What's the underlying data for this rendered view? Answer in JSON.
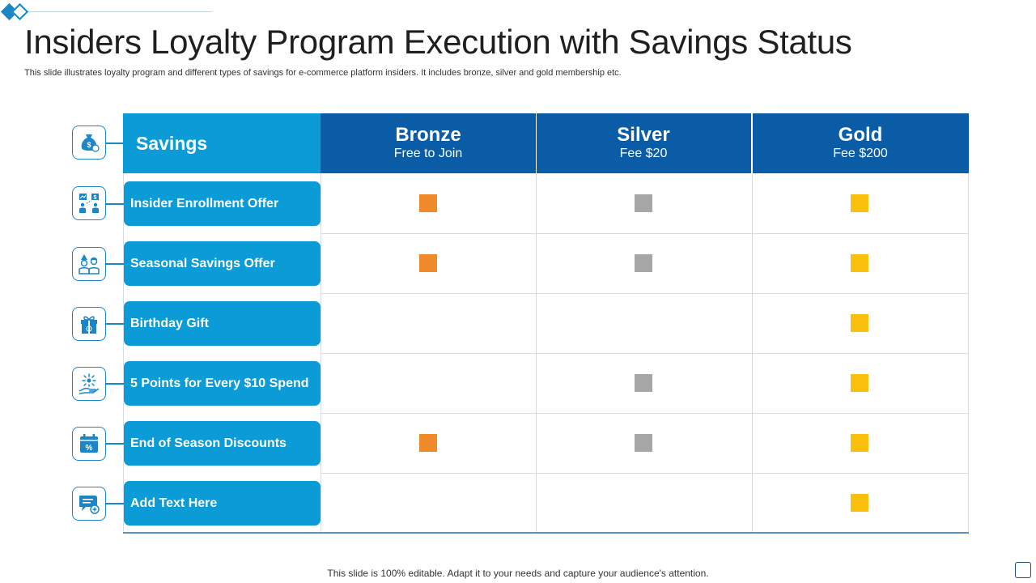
{
  "header": {
    "title": "Insiders Loyalty Program Execution with Savings Status",
    "subtitle": "This slide illustrates loyalty program and different types of savings for e-commerce platform insiders. It includes bronze, silver and gold membership etc."
  },
  "table": {
    "savings_header": "Savings",
    "tiers": [
      {
        "name": "Bronze",
        "fee": "Free to Join"
      },
      {
        "name": "Silver",
        "fee": "Fee $20"
      },
      {
        "name": "Gold",
        "fee": "Fee $200"
      }
    ],
    "rows": [
      {
        "label": "Insider Enrollment Offer",
        "icon": "network-users-icon",
        "bronze": true,
        "silver": true,
        "gold": true
      },
      {
        "label": "Seasonal Savings Offer",
        "icon": "people-icon",
        "bronze": true,
        "silver": true,
        "gold": true
      },
      {
        "label": "Birthday Gift",
        "icon": "gift-icon",
        "bronze": false,
        "silver": false,
        "gold": true
      },
      {
        "label": "5 Points for Every $10 Spend",
        "icon": "hand-sparkle-icon",
        "bronze": false,
        "silver": true,
        "gold": true
      },
      {
        "label": "End of Season Discounts",
        "icon": "calendar-percent-icon",
        "bronze": true,
        "silver": true,
        "gold": true
      },
      {
        "label": "Add Text Here",
        "icon": "chat-plus-icon",
        "bronze": false,
        "silver": false,
        "gold": true
      }
    ],
    "header_icon": "money-bag-icon"
  },
  "colors": {
    "bronze": "#f0892a",
    "silver": "#a6a6a6",
    "gold": "#fbbf0e",
    "accent": "#0b9cd8",
    "tier_header": "#0a5ca6"
  },
  "footer": {
    "text": "This slide is 100% editable. Adapt it to your needs and capture your audience's attention."
  }
}
